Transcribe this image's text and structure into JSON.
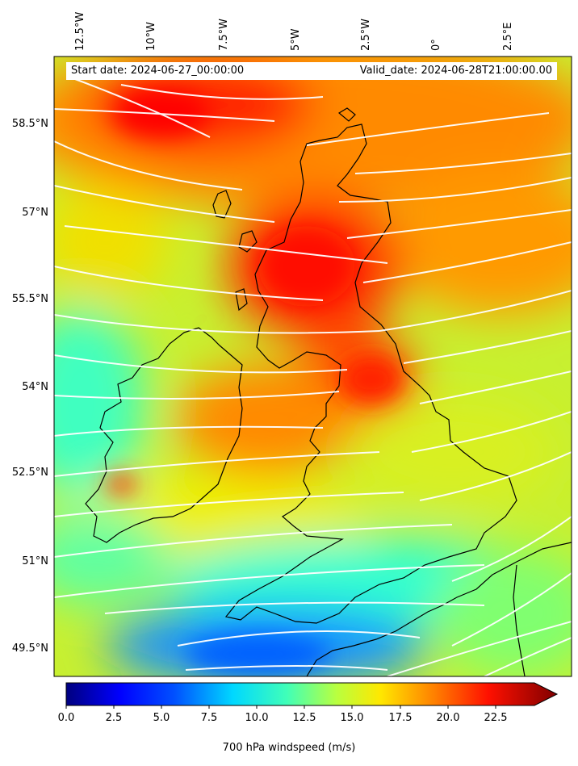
{
  "header": {
    "start_date": "Start date: 2024-06-27_00:00:00",
    "valid_date": "Valid_date: 2024-06-28T21:00:00.00"
  },
  "axes": {
    "lon_labels": [
      "12.5°W",
      "10°W",
      "7.5°W",
      "5°W",
      "2.5°W",
      "0°",
      "2.5°E"
    ],
    "lat_labels": [
      "58.5°N",
      "57°N",
      "55.5°N",
      "54°N",
      "52.5°N",
      "51°N",
      "49.5°N"
    ]
  },
  "colorbar": {
    "title": "700 hPa windspeed (m/s)",
    "ticks": [
      "0.0",
      "2.5",
      "5.0",
      "7.5",
      "10.0",
      "12.5",
      "15.0",
      "17.5",
      "20.0",
      "22.5"
    ],
    "min": 0,
    "max": 25,
    "extend": "max",
    "colormap": "jet",
    "colors": [
      "#00007f",
      "#0000ff",
      "#007fff",
      "#00ffff",
      "#7fff7f",
      "#ffff00",
      "#ff7f00",
      "#ff0000",
      "#7f0000"
    ]
  },
  "map": {
    "field": "700 hPa windspeed",
    "streamline_color": "#ffffff",
    "coastline_color": "#000000"
  }
}
